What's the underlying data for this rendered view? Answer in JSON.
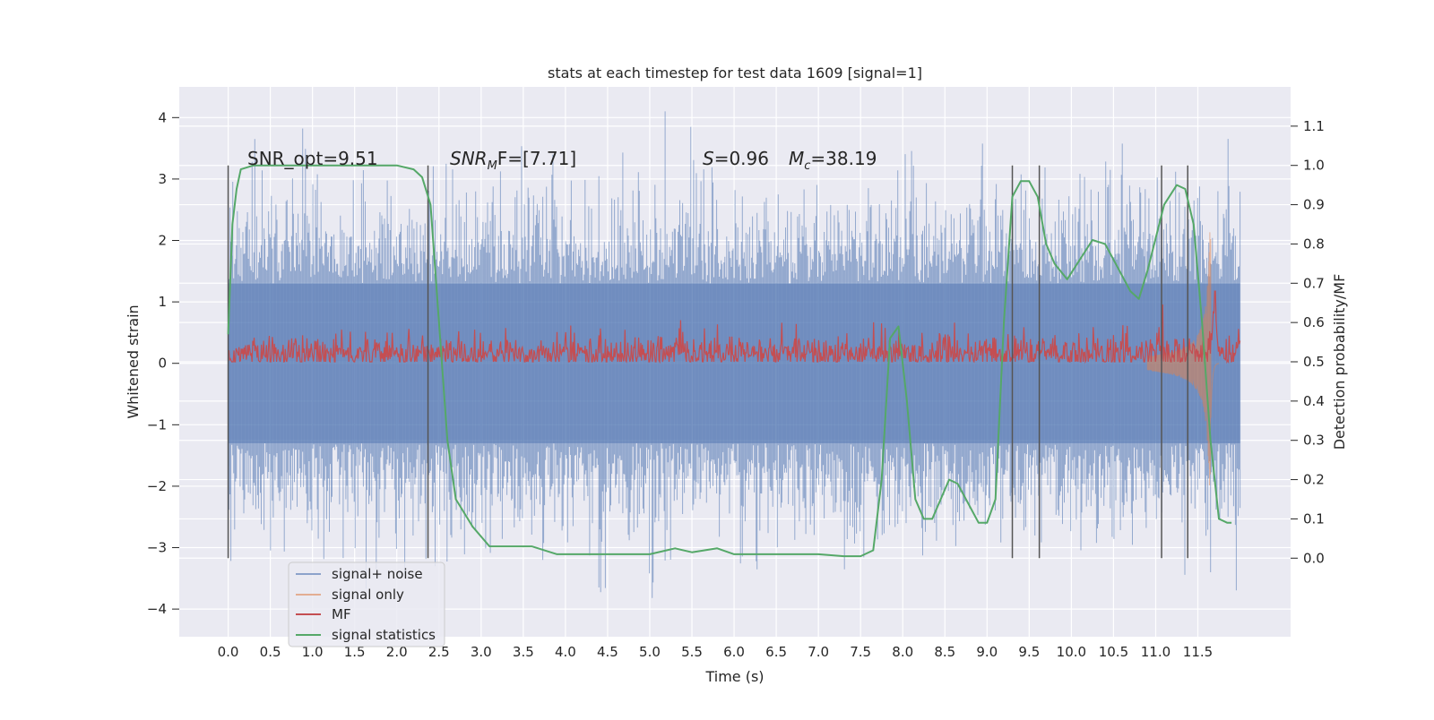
{
  "chart_data": {
    "type": "line",
    "title": "stats at each timestep for test data 1609 [signal=1]",
    "xlabel": "Time (s)",
    "ylabel": "Whitened strain",
    "ylabel_right": "Detection probability/MF",
    "xlim": [
      -0.58,
      12.6
    ],
    "ylim": [
      -4.45,
      4.5
    ],
    "ylim_right": [
      -0.2,
      1.2
    ],
    "x_ticks": [
      "0.0",
      "0.5",
      "1.0",
      "1.5",
      "2.0",
      "2.5",
      "3.0",
      "3.5",
      "4.0",
      "4.5",
      "5.0",
      "5.5",
      "6.0",
      "6.5",
      "7.0",
      "7.5",
      "8.0",
      "8.5",
      "9.0",
      "9.5",
      "10.0",
      "10.5",
      "11.0",
      "11.5"
    ],
    "y_ticks": [
      "4",
      "3",
      "2",
      "1",
      "0",
      "−1",
      "−2",
      "−3",
      "−4"
    ],
    "y_ticks_right": [
      "1.1",
      "1.0",
      "0.9",
      "0.8",
      "0.7",
      "0.6",
      "0.5",
      "0.4",
      "0.3",
      "0.2",
      "0.1",
      "0.0"
    ],
    "grid": true,
    "legend_position": "lower-left",
    "annotations": [
      {
        "prefix": "SNR_opt=9.51",
        "sub": "",
        "suffix": ""
      },
      {
        "prefix": "SNR",
        "sub": "M",
        "suffix": "F=[7.71]"
      },
      {
        "prefix": "S",
        "sub": "",
        "suffix": "=0.96"
      },
      {
        "prefix": "M",
        "sub": "c",
        "suffix": "=38.19"
      }
    ],
    "vertical_markers": [
      0.0,
      2.37,
      9.3,
      9.62,
      11.07,
      11.38
    ],
    "series": [
      {
        "name": "signal+ noise",
        "color": "#4c72b0",
        "kind": "noise",
        "description_values": {
          "band_abs": 1.3,
          "spike_max": 4.1,
          "spike_min": -4.05,
          "t_start": 0.0,
          "t_end": 12.0
        }
      },
      {
        "name": "signal only",
        "color": "#dd8452",
        "kind": "chirp",
        "description_values": {
          "peak_time": 11.65,
          "peak_amp": 2.25,
          "t_start": 10.9,
          "t_end": 11.75
        }
      },
      {
        "name": "MF",
        "color": "#c44e52",
        "kind": "mf",
        "description_values": {
          "center": 0.52,
          "spread": 0.05,
          "peak_time": 11.7,
          "peak_value": 0.67
        }
      },
      {
        "name": "signal statistics",
        "color": "#55a868",
        "kind": "stat",
        "points": [
          [
            0.0,
            0.57
          ],
          [
            0.05,
            0.85
          ],
          [
            0.1,
            0.94
          ],
          [
            0.15,
            0.99
          ],
          [
            0.3,
            1.0
          ],
          [
            1.0,
            1.0
          ],
          [
            2.0,
            1.0
          ],
          [
            2.2,
            0.99
          ],
          [
            2.3,
            0.97
          ],
          [
            2.4,
            0.9
          ],
          [
            2.5,
            0.6
          ],
          [
            2.6,
            0.3
          ],
          [
            2.7,
            0.15
          ],
          [
            2.9,
            0.08
          ],
          [
            3.1,
            0.03
          ],
          [
            3.3,
            0.03
          ],
          [
            3.6,
            0.03
          ],
          [
            3.9,
            0.01
          ],
          [
            4.5,
            0.01
          ],
          [
            5.0,
            0.01
          ],
          [
            5.2,
            0.02
          ],
          [
            5.3,
            0.025
          ],
          [
            5.5,
            0.015
          ],
          [
            5.8,
            0.025
          ],
          [
            6.0,
            0.01
          ],
          [
            6.5,
            0.01
          ],
          [
            7.0,
            0.01
          ],
          [
            7.3,
            0.005
          ],
          [
            7.5,
            0.005
          ],
          [
            7.65,
            0.02
          ],
          [
            7.75,
            0.2
          ],
          [
            7.85,
            0.56
          ],
          [
            7.95,
            0.59
          ],
          [
            8.05,
            0.4
          ],
          [
            8.15,
            0.15
          ],
          [
            8.25,
            0.1
          ],
          [
            8.35,
            0.1
          ],
          [
            8.55,
            0.2
          ],
          [
            8.65,
            0.19
          ],
          [
            8.9,
            0.09
          ],
          [
            9.0,
            0.09
          ],
          [
            9.1,
            0.15
          ],
          [
            9.2,
            0.6
          ],
          [
            9.3,
            0.92
          ],
          [
            9.4,
            0.96
          ],
          [
            9.5,
            0.96
          ],
          [
            9.6,
            0.92
          ],
          [
            9.7,
            0.8
          ],
          [
            9.8,
            0.75
          ],
          [
            9.95,
            0.71
          ],
          [
            10.1,
            0.76
          ],
          [
            10.25,
            0.81
          ],
          [
            10.4,
            0.8
          ],
          [
            10.55,
            0.74
          ],
          [
            10.7,
            0.68
          ],
          [
            10.8,
            0.66
          ],
          [
            10.9,
            0.73
          ],
          [
            11.1,
            0.9
          ],
          [
            11.25,
            0.95
          ],
          [
            11.35,
            0.94
          ],
          [
            11.45,
            0.85
          ],
          [
            11.55,
            0.6
          ],
          [
            11.65,
            0.3
          ],
          [
            11.75,
            0.1
          ],
          [
            11.85,
            0.09
          ],
          [
            11.9,
            0.09
          ]
        ]
      }
    ]
  }
}
